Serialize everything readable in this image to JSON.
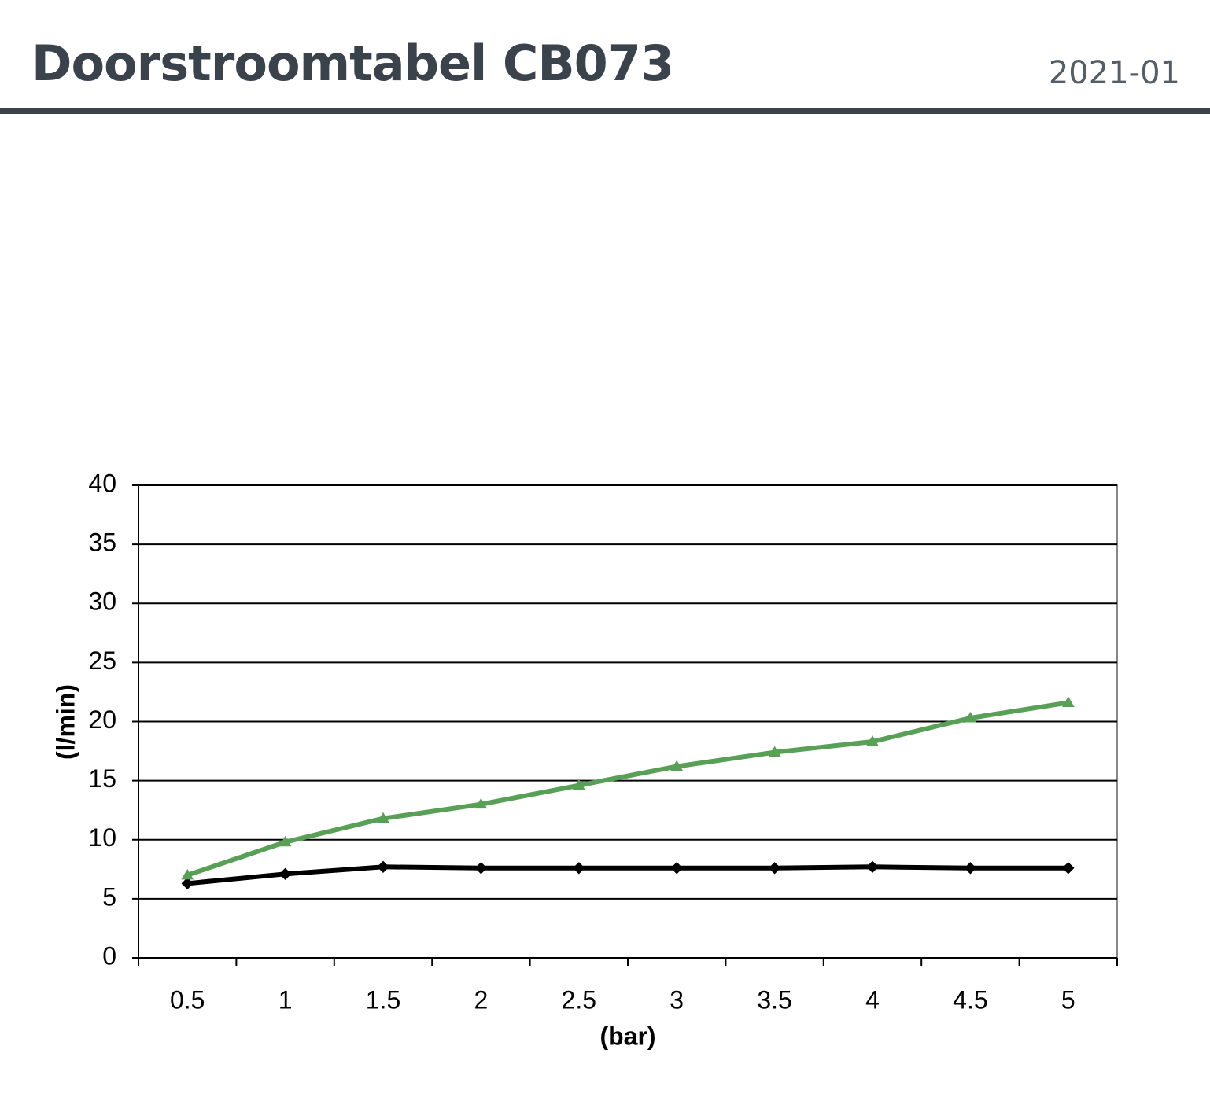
{
  "header": {
    "title": "Doorstroomtabel CB073",
    "date": "2021-01"
  },
  "chart_data": {
    "type": "line",
    "categories": [
      "0.5",
      "1",
      "1.5",
      "2",
      "2.5",
      "3",
      "3.5",
      "4",
      "4.5",
      "5"
    ],
    "series": [
      {
        "color": "#000000",
        "marker": "diamond",
        "values": [
          6.3,
          7.1,
          7.7,
          7.6,
          7.6,
          7.6,
          7.6,
          7.7,
          7.6,
          7.6
        ]
      },
      {
        "color": "#58a055",
        "marker": "triangle",
        "values": [
          7.0,
          9.8,
          11.8,
          13.0,
          14.6,
          16.2,
          17.4,
          18.3,
          20.3,
          21.6
        ]
      }
    ],
    "xlabel": "(bar)",
    "ylabel": "(l/min)",
    "ylim": [
      0,
      40
    ],
    "yticks": [
      0,
      5,
      10,
      15,
      20,
      25,
      30,
      35,
      40
    ],
    "grid": true
  }
}
